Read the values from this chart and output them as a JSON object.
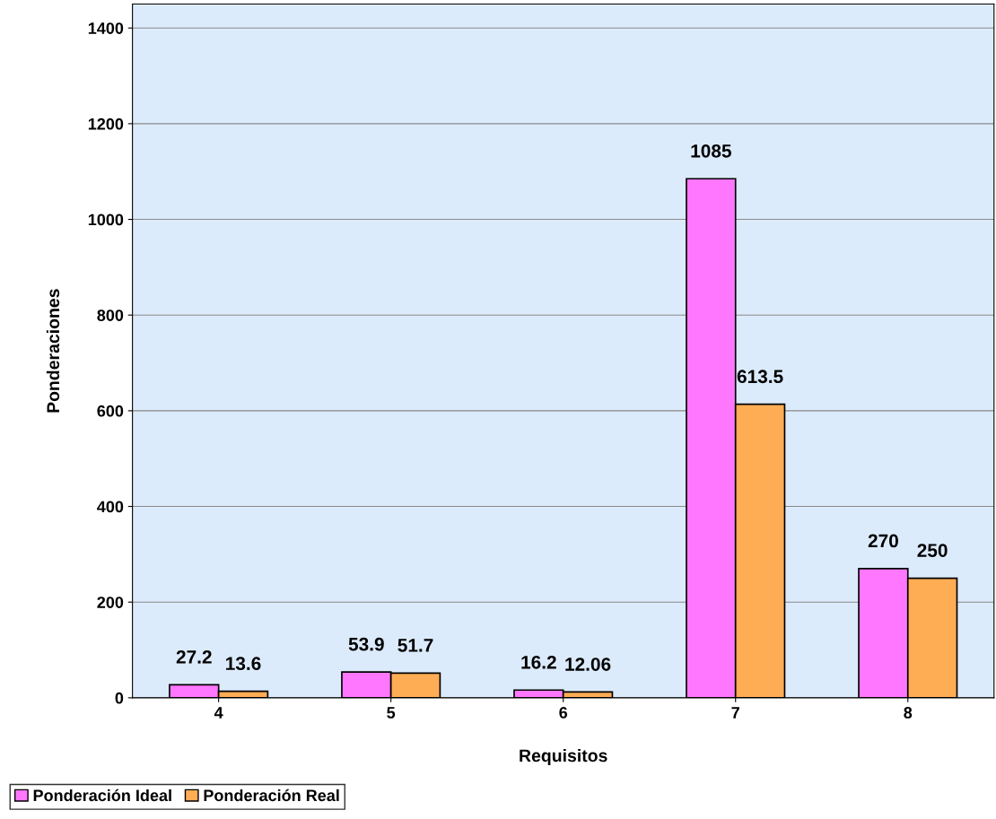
{
  "chart_data": {
    "type": "bar",
    "xlabel": "Requisitos",
    "ylabel": "Ponderaciones",
    "categories": [
      "4",
      "5",
      "6",
      "7",
      "8"
    ],
    "series": [
      {
        "name": "Ponderación Ideal",
        "color": "#ff77ff",
        "values": [
          27.2,
          53.9,
          16.2,
          1085,
          270
        ]
      },
      {
        "name": "Ponderación Real",
        "color": "#ffad55",
        "values": [
          13.6,
          51.7,
          12.06,
          613.5,
          250
        ]
      }
    ],
    "ylim": [
      0,
      1450
    ],
    "yticks": [
      0,
      200,
      400,
      600,
      800,
      1000,
      1200,
      1400
    ],
    "grid": "y",
    "legend": "bottom left",
    "data_labels": true
  }
}
